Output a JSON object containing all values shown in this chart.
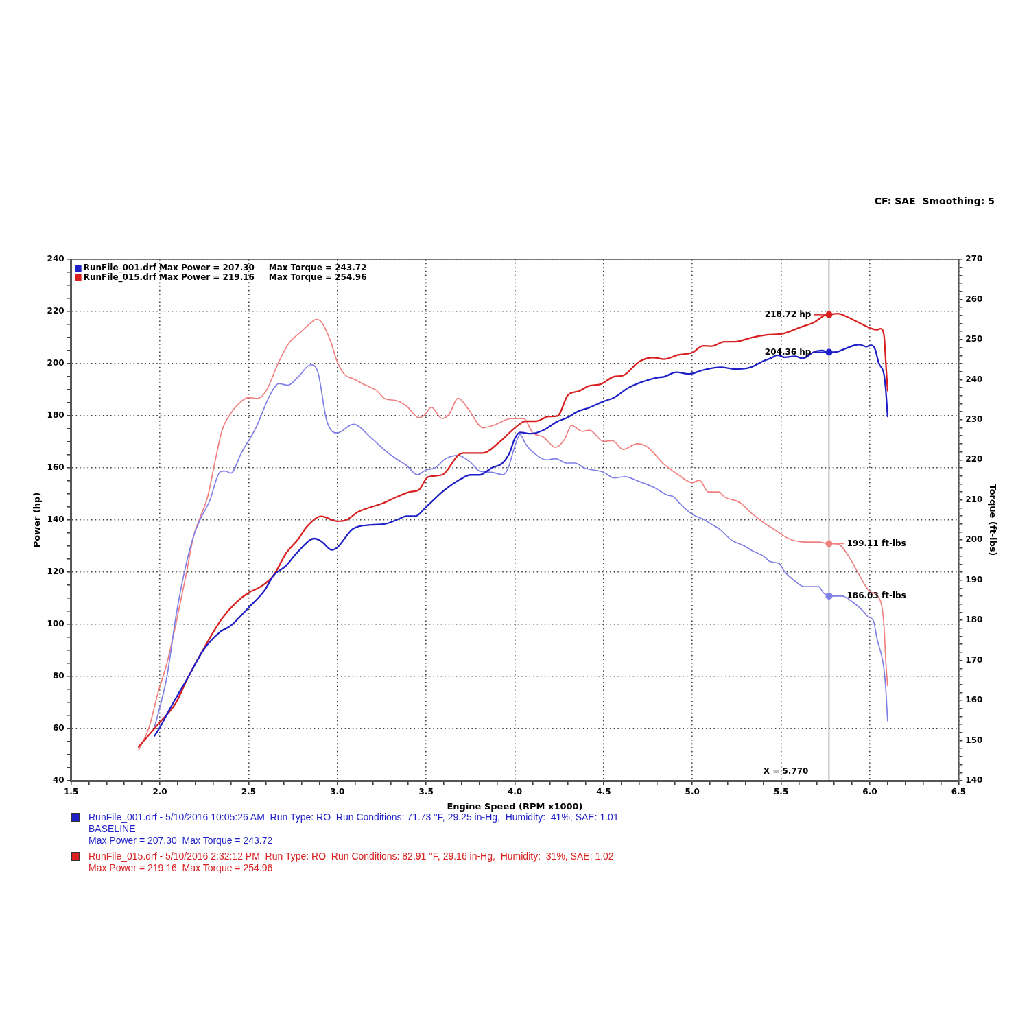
{
  "chart_data": {
    "type": "line",
    "xlabel": "Engine Speed (RPM x1000)",
    "ylabel": "Power (hp)",
    "y2label": "Torque (ft-lbs)",
    "xlim": [
      1.5,
      6.5
    ],
    "xticks": [
      1.5,
      {
        "value": 1.6,
        "label": null
      },
      {
        "value": 1.7,
        "label": null
      },
      {
        "value": 1.8,
        "label": null
      },
      {
        "value": 1.9,
        "label": null
      },
      {
        "value": 2,
        "label": "2.0"
      },
      {
        "value": 2.1,
        "label": null
      },
      {
        "value": 2.2,
        "label": null
      },
      {
        "value": 2.3,
        "label": null
      },
      {
        "value": 2.4,
        "label": null
      },
      2.5,
      {
        "value": 2.6,
        "label": null
      },
      {
        "value": 2.7,
        "label": null
      },
      {
        "value": 2.8,
        "label": null
      },
      {
        "value": 2.9,
        "label": null
      },
      {
        "value": 3,
        "label": "3.0"
      },
      {
        "value": 3.1,
        "label": null
      },
      {
        "value": 3.2,
        "label": null
      },
      {
        "value": 3.3,
        "label": null
      },
      {
        "value": 3.4,
        "label": null
      },
      3.5,
      {
        "value": 3.6,
        "label": null
      },
      {
        "value": 3.7,
        "label": null
      },
      {
        "value": 3.8,
        "label": null
      },
      {
        "value": 3.9,
        "label": null
      },
      {
        "value": 4,
        "label": "4.0"
      },
      {
        "value": 4.1,
        "label": null
      },
      {
        "value": 4.2,
        "label": null
      },
      {
        "value": 4.3,
        "label": null
      },
      {
        "value": 4.4,
        "label": null
      },
      4.5,
      {
        "value": 4.6,
        "label": null
      },
      {
        "value": 4.7,
        "label": null
      },
      {
        "value": 4.8,
        "label": null
      },
      {
        "value": 4.9,
        "label": null
      },
      {
        "value": 5,
        "label": "5.0"
      },
      {
        "value": 5.1,
        "label": null
      },
      {
        "value": 5.2,
        "label": null
      },
      {
        "value": 5.3,
        "label": null
      },
      {
        "value": 5.4,
        "label": null
      },
      5.5,
      {
        "value": 5.6,
        "label": null
      },
      {
        "value": 5.7,
        "label": null
      },
      {
        "value": 5.8,
        "label": null
      },
      {
        "value": 5.9,
        "label": null
      },
      {
        "value": 6,
        "label": "6.0"
      },
      {
        "value": 6.1,
        "label": null
      },
      {
        "value": 6.2,
        "label": null
      },
      {
        "value": 6.3,
        "label": null
      },
      {
        "value": 6.4,
        "label": null
      },
      6.5
    ],
    "ylim": [
      40,
      240
    ],
    "yticks": [
      40,
      {
        "value": 45,
        "label": null
      },
      {
        "value": 50,
        "label": null
      },
      {
        "value": 55,
        "label": null
      },
      60,
      {
        "value": 65,
        "label": null
      },
      {
        "value": 70,
        "label": null
      },
      {
        "value": 75,
        "label": null
      },
      80,
      {
        "value": 85,
        "label": null
      },
      {
        "value": 90,
        "label": null
      },
      {
        "value": 95,
        "label": null
      },
      100,
      {
        "value": 105,
        "label": null
      },
      {
        "value": 110,
        "label": null
      },
      {
        "value": 115,
        "label": null
      },
      120,
      {
        "value": 125,
        "label": null
      },
      {
        "value": 130,
        "label": null
      },
      {
        "value": 135,
        "label": null
      },
      140,
      {
        "value": 145,
        "label": null
      },
      {
        "value": 150,
        "label": null
      },
      {
        "value": 155,
        "label": null
      },
      160,
      {
        "value": 165,
        "label": null
      },
      {
        "value": 170,
        "label": null
      },
      {
        "value": 175,
        "label": null
      },
      180,
      {
        "value": 185,
        "label": null
      },
      {
        "value": 190,
        "label": null
      },
      {
        "value": 195,
        "label": null
      },
      200,
      {
        "value": 205,
        "label": null
      },
      {
        "value": 210,
        "label": null
      },
      {
        "value": 215,
        "label": null
      },
      220,
      {
        "value": 225,
        "label": null
      },
      {
        "value": 230,
        "label": null
      },
      {
        "value": 235,
        "label": null
      },
      240
    ],
    "y2lim": [
      140,
      270
    ],
    "y2ticks": [
      140,
      {
        "value": 142,
        "label": null
      },
      {
        "value": 144,
        "label": null
      },
      {
        "value": 146,
        "label": null
      },
      {
        "value": 148,
        "label": null
      },
      150,
      {
        "value": 152,
        "label": null
      },
      {
        "value": 154,
        "label": null
      },
      {
        "value": 156,
        "label": null
      },
      {
        "value": 158,
        "label": null
      },
      160,
      {
        "value": 162,
        "label": null
      },
      {
        "value": 164,
        "label": null
      },
      {
        "value": 166,
        "label": null
      },
      {
        "value": 168,
        "label": null
      },
      170,
      {
        "value": 172,
        "label": null
      },
      {
        "value": 174,
        "label": null
      },
      {
        "value": 176,
        "label": null
      },
      {
        "value": 178,
        "label": null
      },
      180,
      {
        "value": 182,
        "label": null
      },
      {
        "value": 184,
        "label": null
      },
      {
        "value": 186,
        "label": null
      },
      {
        "value": 188,
        "label": null
      },
      190,
      {
        "value": 192,
        "label": null
      },
      {
        "value": 194,
        "label": null
      },
      {
        "value": 196,
        "label": null
      },
      {
        "value": 198,
        "label": null
      },
      200,
      {
        "value": 202,
        "label": null
      },
      {
        "value": 204,
        "label": null
      },
      {
        "value": 206,
        "label": null
      },
      {
        "value": 208,
        "label": null
      },
      210,
      {
        "value": 212,
        "label": null
      },
      {
        "value": 214,
        "label": null
      },
      {
        "value": 216,
        "label": null
      },
      {
        "value": 218,
        "label": null
      },
      220,
      {
        "value": 222,
        "label": null
      },
      {
        "value": 224,
        "label": null
      },
      {
        "value": 226,
        "label": null
      },
      {
        "value": 228,
        "label": null
      },
      230,
      {
        "value": 232,
        "label": null
      },
      {
        "value": 234,
        "label": null
      },
      {
        "value": 236,
        "label": null
      },
      {
        "value": 238,
        "label": null
      },
      240,
      {
        "value": 242,
        "label": null
      },
      {
        "value": 244,
        "label": null
      },
      {
        "value": 246,
        "label": null
      },
      {
        "value": 248,
        "label": null
      },
      250,
      {
        "value": 252,
        "label": null
      },
      {
        "value": 254,
        "label": null
      },
      {
        "value": 256,
        "label": null
      },
      {
        "value": 258,
        "label": null
      },
      260,
      {
        "value": 262,
        "label": null
      },
      {
        "value": 264,
        "label": null
      },
      {
        "value": 266,
        "label": null
      },
      {
        "value": 268,
        "label": null
      },
      270
    ],
    "grid": true,
    "legend": "top left",
    "series": [
      {
        "name": "RunFile_001.drf Max Power = 207.30     Max Torque = 243.72",
        "color": "#1f1fc8",
        "x": [
          1.97,
          2.0,
          2.06,
          2.16,
          2.25,
          2.34,
          2.4,
          2.5,
          2.59,
          2.64,
          2.71,
          2.78,
          2.87,
          2.91,
          2.97,
          3.0,
          3.09,
          3.19,
          3.27,
          3.34,
          3.39,
          3.44,
          3.5,
          3.6,
          3.69,
          3.75,
          3.8,
          3.87,
          3.93,
          3.97,
          4.0,
          4.03,
          4.09,
          4.16,
          4.24,
          4.29,
          4.36,
          4.42,
          4.5,
          4.56,
          4.64,
          4.71,
          4.8,
          4.84,
          4.91,
          4.98,
          5.06,
          5.16,
          5.24,
          5.33,
          5.4,
          5.44,
          5.48,
          5.52,
          5.58,
          5.62,
          5.69,
          5.73,
          5.77,
          5.82,
          5.86,
          5.94,
          5.98,
          6.01,
          6.03,
          6.05,
          6.08,
          6.09,
          6.1
        ],
        "values": [
          57.2,
          60.4,
          68.0,
          79.8,
          90.6,
          97.1,
          99.5,
          106.4,
          113.0,
          118.7,
          122.4,
          128.0,
          132.9,
          131.8,
          128.5,
          129.5,
          136.7,
          138.1,
          138.5,
          140.2,
          141.5,
          141.5,
          145.0,
          151.3,
          155.5,
          157.3,
          157.3,
          160.0,
          161.8,
          165.7,
          171.3,
          173.6,
          173.1,
          174.4,
          177.8,
          179.1,
          181.8,
          183.1,
          185.5,
          187.0,
          190.7,
          192.8,
          194.6,
          194.9,
          196.7,
          196.0,
          197.5,
          198.6,
          197.9,
          198.6,
          201.0,
          202.0,
          203.2,
          202.4,
          202.8,
          202.0,
          204.6,
          205.0,
          204.36,
          204.6,
          205.7,
          207.3,
          206.5,
          207.0,
          205.4,
          200.2,
          195.7,
          189.6,
          179.7
        ],
        "value_labels": [
          null,
          null,
          null,
          null,
          null,
          null,
          null,
          null,
          null,
          null,
          null,
          null,
          null,
          null,
          null,
          null,
          null,
          null,
          null,
          null,
          null,
          null,
          null,
          null,
          null,
          null,
          null,
          null,
          null,
          null,
          null,
          null,
          null,
          null,
          null,
          null,
          null,
          null,
          null,
          null,
          null,
          null,
          null,
          null,
          null,
          null,
          null,
          null,
          null,
          null,
          null,
          null,
          null,
          null,
          null,
          null,
          null,
          null,
          "204.36 hp",
          null,
          null,
          null,
          null,
          null,
          null,
          null,
          null,
          null,
          null
        ]
      },
      {
        "name": "RunFile_015.drf Max Power = 219.16     Max Torque = 254.96",
        "color": "#d92020",
        "x": [
          1.88,
          2.0,
          2.09,
          2.16,
          2.25,
          2.35,
          2.43,
          2.5,
          2.57,
          2.64,
          2.71,
          2.78,
          2.83,
          2.91,
          3.0,
          3.05,
          3.12,
          3.26,
          3.34,
          3.41,
          3.46,
          3.51,
          3.59,
          3.68,
          3.71,
          3.82,
          3.91,
          4.0,
          4.06,
          4.12,
          4.19,
          4.24,
          4.3,
          4.36,
          4.42,
          4.48,
          4.56,
          4.61,
          4.7,
          4.78,
          4.84,
          4.92,
          5.0,
          5.06,
          5.11,
          5.18,
          5.24,
          5.33,
          5.42,
          5.51,
          5.6,
          5.69,
          5.75,
          5.77,
          5.82,
          5.86,
          5.93,
          6.0,
          6.04,
          6.06,
          6.08,
          6.09,
          6.1
        ],
        "values": [
          53.0,
          62.4,
          69.8,
          79.8,
          91.0,
          102.2,
          108.4,
          112.1,
          114.5,
          118.7,
          127.1,
          132.7,
          137.6,
          141.4,
          139.5,
          140.0,
          143.2,
          146.5,
          149.0,
          150.8,
          151.6,
          156.5,
          157.3,
          164.8,
          165.7,
          165.7,
          169.7,
          175.3,
          177.9,
          177.9,
          179.7,
          179.9,
          188.0,
          189.4,
          191.5,
          192.0,
          195.0,
          195.4,
          200.7,
          202.3,
          201.7,
          203.3,
          204.2,
          206.8,
          206.7,
          208.4,
          208.4,
          209.9,
          211.0,
          211.5,
          213.7,
          216.0,
          218.6,
          218.72,
          219.2,
          218.3,
          216.0,
          213.7,
          213.0,
          213.4,
          210.7,
          200.2,
          189.6
        ],
        "value_labels": [
          null,
          null,
          null,
          null,
          null,
          null,
          null,
          null,
          null,
          null,
          null,
          null,
          null,
          null,
          null,
          null,
          null,
          null,
          null,
          null,
          null,
          null,
          null,
          null,
          null,
          null,
          null,
          null,
          null,
          null,
          null,
          null,
          null,
          null,
          null,
          null,
          null,
          null,
          null,
          null,
          null,
          null,
          null,
          null,
          null,
          null,
          null,
          null,
          null,
          null,
          null,
          null,
          null,
          "218.72 hp",
          null,
          null,
          null,
          null,
          null,
          null,
          null,
          null,
          null
        ]
      },
      {
        "color": "#8080e6",
        "axis": "y2",
        "x": [
          1.97,
          2.0,
          2.04,
          2.09,
          2.14,
          2.19,
          2.23,
          2.28,
          2.34,
          2.37,
          2.4,
          2.46,
          2.54,
          2.62,
          2.67,
          2.72,
          2.78,
          2.85,
          2.89,
          2.94,
          3.0,
          3.09,
          3.19,
          3.27,
          3.33,
          3.39,
          3.45,
          3.5,
          3.55,
          3.61,
          3.68,
          3.75,
          3.8,
          3.87,
          3.93,
          3.96,
          4.0,
          4.03,
          4.06,
          4.1,
          4.18,
          4.23,
          4.29,
          4.34,
          4.39,
          4.5,
          4.56,
          4.62,
          4.7,
          4.78,
          4.86,
          4.89,
          4.94,
          5.0,
          5.06,
          5.11,
          5.16,
          5.22,
          5.29,
          5.33,
          5.4,
          5.44,
          5.49,
          5.52,
          5.58,
          5.63,
          5.71,
          5.74,
          5.77,
          5.84,
          5.91,
          5.96,
          5.99,
          6.02,
          6.04,
          6.08,
          6.09,
          6.1
        ],
        "values": [
          153.4,
          158.3,
          166.0,
          180.8,
          192.4,
          201.0,
          205.4,
          209.7,
          217.0,
          217.2,
          216.7,
          221.8,
          227.9,
          236.1,
          239.0,
          238.6,
          240.7,
          243.7,
          241.9,
          229.8,
          226.7,
          228.9,
          225.5,
          222.3,
          220.3,
          218.6,
          216.3,
          217.5,
          218.0,
          220.3,
          221.1,
          219.4,
          217.2,
          216.9,
          216.3,
          217.7,
          223.4,
          226.3,
          224.0,
          222.0,
          220.0,
          220.3,
          219.2,
          219.2,
          218.0,
          216.9,
          215.5,
          215.8,
          214.6,
          213.2,
          211.2,
          210.9,
          208.6,
          206.4,
          205.2,
          203.9,
          202.5,
          200.0,
          198.6,
          197.5,
          196.0,
          194.6,
          194.1,
          192.1,
          189.7,
          188.4,
          188.4,
          186.8,
          186.03,
          186.1,
          184.3,
          182.4,
          180.9,
          179.9,
          175.5,
          167.7,
          162.7,
          154.9
        ],
        "value_labels": [
          null,
          null,
          null,
          null,
          null,
          null,
          null,
          null,
          null,
          null,
          null,
          null,
          null,
          null,
          null,
          null,
          null,
          null,
          null,
          null,
          null,
          null,
          null,
          null,
          null,
          null,
          null,
          null,
          null,
          null,
          null,
          null,
          null,
          null,
          null,
          null,
          null,
          null,
          null,
          null,
          null,
          null,
          null,
          null,
          null,
          null,
          null,
          null,
          null,
          null,
          null,
          null,
          null,
          null,
          null,
          null,
          null,
          null,
          null,
          null,
          null,
          null,
          null,
          null,
          null,
          null,
          null,
          null,
          "186.03 ft-lbs",
          null,
          null,
          null,
          null,
          null,
          null,
          null,
          null,
          null
        ]
      },
      {
        "color": "#f08080",
        "axis": "y2",
        "x": [
          1.88,
          1.94,
          1.99,
          2.04,
          2.09,
          2.15,
          2.19,
          2.23,
          2.27,
          2.31,
          2.35,
          2.4,
          2.46,
          2.5,
          2.55,
          2.6,
          2.67,
          2.73,
          2.79,
          2.85,
          2.88,
          2.91,
          2.96,
          3.0,
          3.04,
          3.09,
          3.16,
          3.22,
          3.27,
          3.33,
          3.39,
          3.46,
          3.49,
          3.53,
          3.59,
          3.63,
          3.68,
          3.74,
          3.82,
          3.88,
          3.98,
          4.05,
          4.1,
          4.16,
          4.23,
          4.28,
          4.32,
          4.38,
          4.42,
          4.5,
          4.55,
          4.61,
          4.69,
          4.75,
          4.84,
          4.92,
          5.0,
          5.04,
          5.09,
          5.15,
          5.18,
          5.27,
          5.33,
          5.4,
          5.46,
          5.55,
          5.64,
          5.71,
          5.77,
          5.82,
          5.88,
          5.93,
          6.0,
          6.06,
          6.08,
          6.09,
          6.1
        ],
        "values": [
          147.6,
          153.4,
          162.0,
          169.3,
          179.0,
          191.8,
          201.0,
          206.0,
          210.9,
          219.4,
          227.3,
          231.6,
          234.6,
          235.5,
          235.3,
          237.3,
          244.4,
          249.3,
          251.7,
          254.1,
          255.0,
          254.4,
          249.8,
          244.4,
          241.3,
          240.2,
          238.6,
          237.3,
          235.2,
          234.8,
          233.4,
          230.5,
          231.1,
          233.1,
          230.3,
          231.4,
          235.4,
          232.5,
          228.0,
          228.6,
          230.3,
          230.3,
          226.8,
          225.7,
          223.1,
          225.1,
          228.6,
          227.1,
          227.4,
          224.6,
          224.8,
          222.6,
          224.0,
          223.1,
          218.9,
          216.3,
          214.3,
          214.9,
          212.0,
          212.0,
          210.8,
          209.3,
          206.8,
          204.4,
          202.7,
          200.2,
          199.5,
          199.5,
          199.11,
          199.0,
          196.0,
          192.1,
          187.2,
          184.8,
          178.4,
          169.6,
          163.7
        ],
        "value_labels": [
          null,
          null,
          null,
          null,
          null,
          null,
          null,
          null,
          null,
          null,
          null,
          null,
          null,
          null,
          null,
          null,
          null,
          null,
          null,
          null,
          null,
          null,
          null,
          null,
          null,
          null,
          null,
          null,
          null,
          null,
          null,
          null,
          null,
          null,
          null,
          null,
          null,
          null,
          null,
          null,
          null,
          null,
          null,
          null,
          null,
          null,
          null,
          null,
          null,
          null,
          null,
          null,
          null,
          null,
          null,
          null,
          null,
          null,
          null,
          null,
          null,
          null,
          null,
          null,
          null,
          null,
          null,
          null,
          "199.11 ft-lbs",
          null,
          null,
          null,
          null,
          null,
          null,
          null,
          null
        ]
      }
    ],
    "ref_lines": [
      {
        "axis": "x",
        "value": 5.77,
        "label": "X = 5.770",
        "color": "#000000"
      }
    ],
    "annotations": [
      "CF: SAE  Smoothing: 5",
      "RunFile_001.drf - 5/10/2016 10:05:26 AM  Run Type: RO  Run Conditions: 71.73 °F, 29.25 in-Hg,  Humidity:  41%, SAE: 1.01\nBASELINE\nMax Power = 207.30  Max Torque = 243.72",
      "RunFile_015.drf - 5/10/2016 2:32:12 PM  Run Type: RO  Run Conditions: 82.91 °F, 29.16 in-Hg,  Humidity:  31%, SAE: 1.02\nMax Power = 219.16  Max Torque = 254.96"
    ]
  }
}
